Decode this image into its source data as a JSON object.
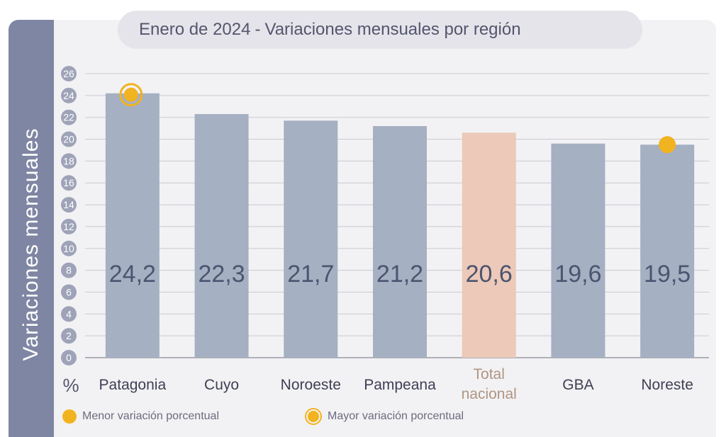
{
  "y_axis_label": "Variaciones mensuales",
  "percent_symbol": "%",
  "title": {
    "date": "Enero de 2024",
    "separator": "-",
    "main": "Variaciones mensuales por región"
  },
  "legend": {
    "min_label": "Menor variación porcentual",
    "max_label": "Mayor variación porcentual"
  },
  "colors": {
    "bar": "#a5b0c2",
    "bar_highlight": "#ecc9b8",
    "marker": "#f2b320",
    "tick_bubble": "#9ea3b8",
    "value_text": "#4c5470",
    "category_text": "#3f3f55",
    "highlight_text": "#b09582"
  },
  "chart_data": {
    "type": "bar",
    "title": "Enero de 2024 - Variaciones mensuales por región",
    "ylabel": "Variaciones mensuales",
    "xlabel": "",
    "unit": "%",
    "ylim": [
      0,
      26
    ],
    "yticks": [
      0,
      2,
      4,
      6,
      8,
      10,
      12,
      14,
      16,
      18,
      20,
      22,
      24,
      26
    ],
    "grid": true,
    "categories": [
      "Patagonia",
      "Cuyo",
      "Noroeste",
      "Pampeana",
      "Total nacional",
      "GBA",
      "Noreste"
    ],
    "category_lines": [
      [
        "Patagonia"
      ],
      [
        "Cuyo"
      ],
      [
        "Noroeste"
      ],
      [
        "Pampeana"
      ],
      [
        "Total",
        "nacional"
      ],
      [
        "GBA"
      ],
      [
        "Noreste"
      ]
    ],
    "values": [
      24.2,
      22.3,
      21.7,
      21.2,
      20.6,
      19.6,
      19.5
    ],
    "value_labels": [
      "24,2",
      "22,3",
      "21,7",
      "21,2",
      "20,6",
      "19,6",
      "19,5"
    ],
    "highlight_category": "Total nacional",
    "max_marker_category": "Patagonia",
    "min_marker_category": "Noreste"
  }
}
